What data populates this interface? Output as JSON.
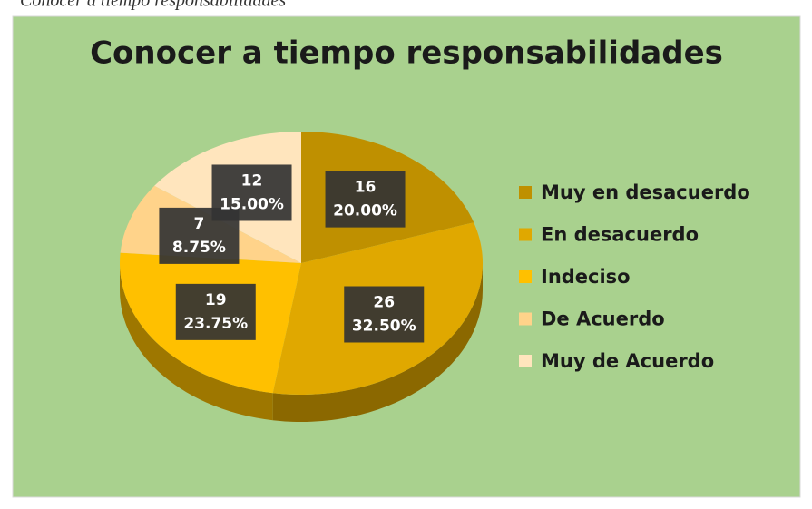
{
  "caption": "Conocer a tiempo responsabilidades",
  "chart_data": {
    "type": "pie",
    "title": "Conocer a tiempo responsabilidades",
    "categories": [
      "Muy en desacuerdo",
      "En desacuerdo",
      "Indeciso",
      "De Acuerdo",
      "Muy de Acuerdo"
    ],
    "values": [
      16,
      26,
      19,
      7,
      12
    ],
    "percent_labels": [
      "20.00%",
      "32.50%",
      "23.75%",
      "8.75%",
      "15.00%"
    ],
    "colors": [
      "#bf9000",
      "#e0a800",
      "#ffc000",
      "#ffd38a",
      "#ffe5bd"
    ],
    "legend": "right"
  }
}
